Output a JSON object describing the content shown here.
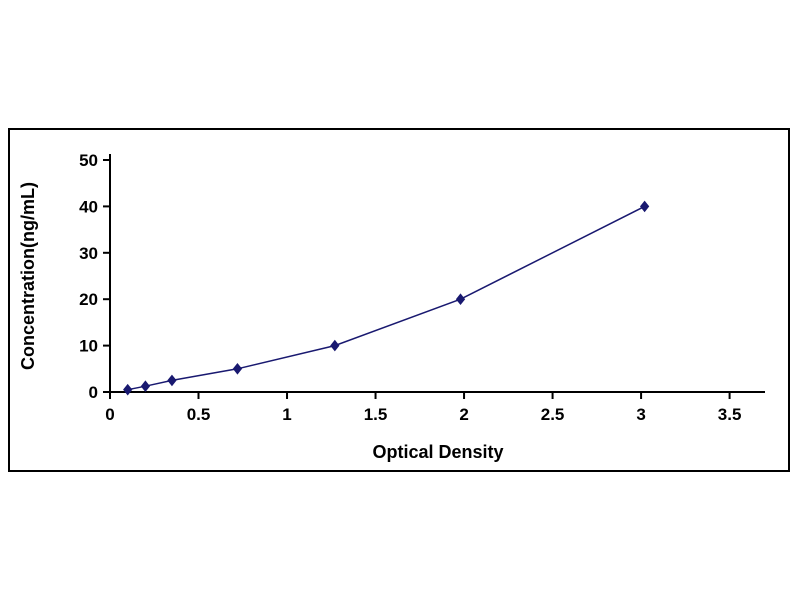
{
  "chart_data": {
    "type": "line",
    "title": "",
    "xlabel": "Optical Density",
    "ylabel": "Concentration(ng/mL)",
    "x": [
      0.1,
      0.2,
      0.35,
      0.72,
      1.27,
      1.98,
      3.02
    ],
    "y": [
      0.5,
      1.25,
      2.5,
      5,
      10,
      20,
      40
    ],
    "xlim": [
      0,
      3.7
    ],
    "ylim": [
      0,
      50
    ],
    "x_tick_values": [
      0,
      0.5,
      1,
      1.5,
      2,
      2.5,
      3,
      3.5
    ],
    "x_tick_labels": [
      "0",
      "0.5",
      "1",
      "1.5",
      "2",
      "2.5",
      "3",
      "3.5"
    ],
    "y_tick_values": [
      0,
      10,
      20,
      30,
      40,
      50
    ],
    "y_tick_labels": [
      "0",
      "10",
      "20",
      "30",
      "40",
      "50"
    ],
    "line_color": "#191970",
    "marker": "diamond",
    "marker_color": "#191970",
    "grid": false,
    "legend": null
  }
}
